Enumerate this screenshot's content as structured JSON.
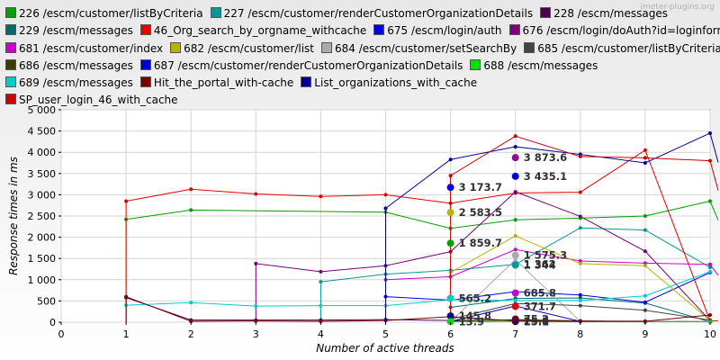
{
  "watermark": "jmeter-plugins.org",
  "chart_data": {
    "type": "line",
    "xlabel": "Number of active threads",
    "ylabel": "Response times in ms",
    "xlim": [
      0,
      10
    ],
    "ylim": [
      0,
      5000
    ],
    "x_ticks": [
      "0",
      "1",
      "2",
      "3",
      "4",
      "5",
      "6",
      "7",
      "8",
      "9",
      "10"
    ],
    "y_ticks": [
      "0",
      "500",
      "1 000",
      "1 500",
      "2 000",
      "2 500",
      "3 000",
      "3 500",
      "4 000",
      "4 500",
      "5 000"
    ],
    "grid": true,
    "legend_position": "top",
    "series": [
      {
        "name": "226 /escm/customer/listByCriteria",
        "color": "#00a000",
        "x": [
          1,
          2,
          5,
          6,
          7,
          8,
          9,
          10,
          10.15
        ],
        "y": [
          2420,
          2640,
          2590,
          2210,
          2410,
          2450,
          2500,
          2850,
          2400
        ]
      },
      {
        "name": "227 /escm/customer/renderCustomerOrganizationDetails",
        "color": "#009999",
        "x": [
          4,
          5,
          6,
          7,
          8,
          9,
          10
        ],
        "y": [
          950,
          1130,
          1220,
          1360,
          2220,
          2170,
          1290
        ]
      },
      {
        "name": "228 /escm/messages",
        "color": "#4b0050",
        "x": [
          1,
          2,
          3,
          4,
          5,
          6,
          7,
          8,
          9,
          10
        ],
        "y": [
          580,
          50,
          50,
          50,
          60,
          40,
          50,
          30,
          20,
          20
        ]
      },
      {
        "name": "229 /escm/messages",
        "color": "#006b6b",
        "x": [
          6,
          7,
          8,
          9,
          10
        ],
        "y": [
          350,
          560,
          570,
          450,
          10
        ]
      },
      {
        "name": "46_Org_search_by_orgname_withcache",
        "color": "#e80000",
        "x": [
          1,
          2,
          3,
          4,
          5,
          6,
          7,
          8,
          9,
          10,
          10.15
        ],
        "y": [
          2850,
          3130,
          3020,
          2960,
          3000,
          2800,
          3040,
          3060,
          4050,
          30,
          30
        ]
      },
      {
        "name": "675 /escm/login/auth",
        "color": "#0000ee",
        "x": [
          5,
          6,
          7,
          8,
          9,
          10
        ],
        "y": [
          600,
          520,
          720,
          640,
          470,
          1170
        ]
      },
      {
        "name": "676 /escm/login/doAuth?id=loginform",
        "color": "#7a007a",
        "x": [
          3,
          4,
          5,
          6,
          7,
          8,
          9,
          10
        ],
        "y": [
          1380,
          1190,
          1330,
          1660,
          3070,
          2490,
          1670,
          40
        ]
      },
      {
        "name": "681 /escm/customer/index",
        "color": "#cc00cc",
        "x": [
          5,
          6,
          7,
          8,
          9,
          10,
          10.15
        ],
        "y": [
          1000,
          1070,
          1710,
          1440,
          1390,
          1360,
          1100
        ]
      },
      {
        "name": "682 /escm/customer/list",
        "color": "#b5b500",
        "x": [
          6,
          7,
          8,
          9,
          10
        ],
        "y": [
          1170,
          2030,
          1380,
          1330,
          40
        ]
      },
      {
        "name": "684 /escm/customer/setSearchBy",
        "color": "#aaaaaa",
        "x": [
          6,
          7,
          8,
          9,
          10
        ],
        "y": [
          10,
          1470,
          20,
          30,
          20
        ]
      },
      {
        "name": "685 /escm/customer/listByCriteria",
        "color": "#444444",
        "x": [
          6,
          7,
          8,
          9,
          10
        ],
        "y": [
          70,
          440,
          390,
          280,
          50
        ]
      },
      {
        "name": "686 /escm/messages",
        "color": "#3d3d00",
        "x": [
          6,
          7,
          8,
          9,
          10
        ],
        "y": [
          20,
          60,
          30,
          10,
          10
        ]
      },
      {
        "name": "687 /escm/customer/renderCustomerOrganizationDetails",
        "color": "#0000cc",
        "x": [
          6,
          7,
          8,
          9,
          10
        ],
        "y": [
          20,
          380,
          20,
          10,
          10
        ]
      },
      {
        "name": "688 /escm/messages",
        "color": "#00dd00",
        "x": [
          6,
          7,
          8,
          9,
          10
        ],
        "y": [
          10,
          20,
          10,
          10,
          10
        ]
      },
      {
        "name": "689 /escm/messages",
        "color": "#00cccc",
        "x": [
          1,
          2,
          3,
          4,
          5,
          6,
          7,
          8,
          9,
          10
        ],
        "y": [
          400,
          460,
          380,
          390,
          390,
          530,
          510,
          510,
          620,
          1190
        ]
      },
      {
        "name": "Hit_the_portal_with-cache",
        "color": "#7a0000",
        "x": [
          1,
          2,
          3,
          4,
          5,
          6,
          7,
          8,
          9,
          10
        ],
        "y": [
          600,
          20,
          30,
          20,
          40,
          130,
          30,
          20,
          20,
          170
        ]
      },
      {
        "name": "List_organizations_with_cache",
        "color": "#000099",
        "x": [
          5,
          6,
          7,
          8,
          9,
          10,
          10.15
        ],
        "y": [
          2680,
          3830,
          4130,
          3950,
          3750,
          4450,
          3760
        ]
      },
      {
        "name": "SP_user_login_46_with_cache",
        "color": "#cc0000",
        "x": [
          6,
          7,
          8,
          9,
          10,
          10.15
        ],
        "y": [
          3450,
          4380,
          3900,
          3870,
          3800,
          3100
        ]
      }
    ],
    "highlight_points": [
      {
        "x": 7,
        "y": 3873.6,
        "label": "3 873.6",
        "color": "#990099"
      },
      {
        "x": 7,
        "y": 3435.1,
        "label": "3 435.1",
        "color": "#0000ee"
      },
      {
        "x": 6,
        "y": 3173.7,
        "label": "3 173.7",
        "color": "#0000ee"
      },
      {
        "x": 6,
        "y": 2583.5,
        "label": "2 583.5",
        "color": "#b5b500"
      },
      {
        "x": 6,
        "y": 1859.7,
        "label": "1 859.7",
        "color": "#00a000"
      },
      {
        "x": 7,
        "y": 1575.3,
        "label": "1 575.3",
        "color": "#aaaaaa"
      },
      {
        "x": 7,
        "y": 1362,
        "label": "1 362",
        "color": "#00cccc"
      },
      {
        "x": 7,
        "y": 1344,
        "label": "1 344",
        "color": "#009999"
      },
      {
        "x": 7,
        "y": 685.8,
        "label": "685.8",
        "color": "#cc00cc"
      },
      {
        "x": 6,
        "y": 565.2,
        "label": "565.2",
        "color": "#00cccc"
      },
      {
        "x": 7,
        "y": 371.7,
        "label": "371.7",
        "color": "#e80000"
      },
      {
        "x": 6,
        "y": 145.8,
        "label": "145.8",
        "color": "#000099"
      },
      {
        "x": 6,
        "y": 13.9,
        "label": "13.9",
        "color": "#00dd00"
      },
      {
        "x": 7,
        "y": 75.2,
        "label": "75.2",
        "color": "#7a0000"
      },
      {
        "x": 7,
        "y": 25.8,
        "label": "25.8",
        "color": "#444444"
      },
      {
        "x": 7,
        "y": 15.1,
        "label": "15.1",
        "color": "#4b0050"
      }
    ]
  }
}
